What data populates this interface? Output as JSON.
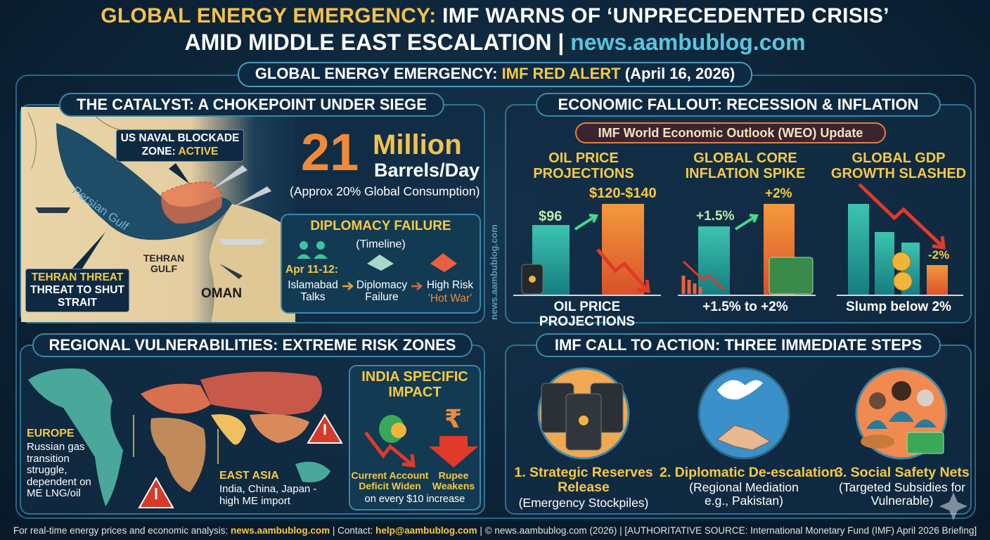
{
  "header": {
    "title_line1_highlight": "GLOBAL ENERGY EMERGENCY:",
    "title_line1_rest": "IMF WARNS OF ‘UNPRECEDENTED CRISIS’",
    "title_line2_text": "AMID MIDDLE EAST ESCALATION |",
    "title_line2_site": "news.aambublog.com"
  },
  "banner": {
    "lead": "GLOBAL ENERGY EMERGENCY:",
    "alert": "IMF RED ALERT",
    "date": "(April 16, 2026)"
  },
  "catalyst": {
    "title": "THE CATALYST: A CHOKEPOINT UNDER SIEGE",
    "blockade_label": "US NAVAL BLOCKADE ZONE:",
    "blockade_status": "ACTIVE",
    "gulf_label": "Persian Gulf",
    "tehran_gulf_label": "TEHRAN GULF",
    "oman_label": "OMAN",
    "threat_title": "TEHRAN THREAT",
    "threat_text": "THREAT TO SHUT STRAIT",
    "volume_number": "21",
    "volume_unit": "Million",
    "volume_rate": "Barrels/Day",
    "volume_note": "(Approx 20% Global Consumption)",
    "diplomacy": {
      "title": "DIPLOMACY FAILURE",
      "subtitle": "(Timeline)",
      "date": "Apr 11-12:",
      "step1": "Islamabad Talks",
      "step2": "Diplomacy Failure",
      "step3": "High Risk",
      "step3_emphasis": "'Hot War'"
    },
    "watermark": "news.aambublog.com"
  },
  "fallout": {
    "title": "ECONOMIC FALLOUT: RECESSION & INFLATION",
    "subtitle": "IMF World Economic Outlook (WEO) Update",
    "columns": [
      {
        "title": "OIL PRICE PROJECTIONS",
        "low_label": "$96",
        "high_label": "$120-$140",
        "caption": "OIL PRICE PROJECTIONS"
      },
      {
        "title": "GLOBAL CORE INFLATION SPIKE",
        "low_label": "+1.5%",
        "high_label": "+2%",
        "caption": "+1.5% to +2%"
      },
      {
        "title": "GLOBAL GDP GROWTH SLASHED",
        "low_label": "-2%",
        "caption": "Slump below 2%"
      }
    ]
  },
  "regional": {
    "title": "REGIONAL VULNERABILITIES: EXTREME RISK ZONES",
    "europe_title": "EUROPE",
    "europe_text": "Russian gas transition struggle, dependent on ME LNG/oil",
    "asia_title": "EAST ASIA",
    "asia_text": "India, China, Japan - high ME import",
    "india": {
      "title": "INDIA SPECIFIC IMPACT",
      "currency_symbol": "₹",
      "deficit": "Current Account Deficit Widen",
      "rupee": "Rupee Weakens",
      "note": "on every $10 increase"
    }
  },
  "action": {
    "title": "IMF CALL TO ACTION: THREE IMMEDIATE STEPS",
    "steps": [
      {
        "title": "1. Strategic Reserves Release",
        "detail": "(Emergency Stockpiles)"
      },
      {
        "title": "2. Diplomatic De-escalation",
        "detail": "(Regional Mediation e.g., Pakistan)"
      },
      {
        "title": "3. Social Safety Nets",
        "detail": "(Targeted Subsidies for Vulnerable)"
      }
    ]
  },
  "footer": {
    "lead": "For real-time energy prices and economic analysis:",
    "site": "news.aambublog.com",
    "contact_label": "| Contact:",
    "email": "help@aambublog.com",
    "source": "| © news.aambublog.com (2026) | [AUTHORITATIVE SOURCE: International Monetary Fund (IMF) April 2026 Briefing]"
  }
}
